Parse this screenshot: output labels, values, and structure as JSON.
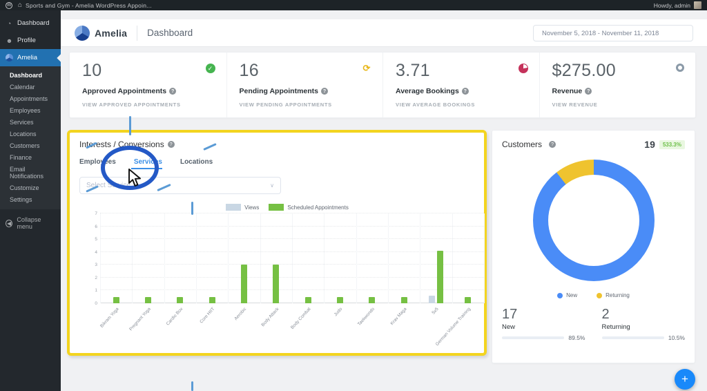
{
  "admin_bar": {
    "site_title": "Sports and Gym - Amelia WordPress Appoin...",
    "howdy_text": "Howdy, admin"
  },
  "sidebar": {
    "items": [
      {
        "label": "Dashboard"
      },
      {
        "label": "Profile"
      },
      {
        "label": "Amelia"
      }
    ],
    "submenu": [
      {
        "label": "Dashboard"
      },
      {
        "label": "Calendar"
      },
      {
        "label": "Appointments"
      },
      {
        "label": "Employees"
      },
      {
        "label": "Services"
      },
      {
        "label": "Locations"
      },
      {
        "label": "Customers"
      },
      {
        "label": "Finance"
      },
      {
        "label": "Email Notifications"
      },
      {
        "label": "Customize"
      },
      {
        "label": "Settings"
      }
    ],
    "collapse_label": "Collapse menu"
  },
  "header": {
    "brand": "Amelia",
    "page_title": "Dashboard",
    "date_range": "November 5, 2018 - November 11, 2018"
  },
  "stats": {
    "cards": [
      {
        "value": "10",
        "label": "Approved Appointments",
        "link": "VIEW APPROVED APPOINTMENTS",
        "icon": "check-circle",
        "icon_color": "#46b450"
      },
      {
        "value": "16",
        "label": "Pending Appointments",
        "link": "VIEW PENDING APPOINTMENTS",
        "icon": "refresh-circle",
        "icon_color": "#e8b71a"
      },
      {
        "value": "3.71",
        "label": "Average Bookings",
        "link": "VIEW AVERAGE BOOKINGS",
        "icon": "pie-circle",
        "icon_color": "#c5325b"
      },
      {
        "value": "$275.00",
        "label": "Revenue",
        "link": "VIEW REVENUE",
        "icon": "ring-circle",
        "icon_color": "#8b9aa8"
      }
    ]
  },
  "interests": {
    "title": "Interests / Conversions",
    "tabs": [
      {
        "label": "Employees"
      },
      {
        "label": "Services"
      },
      {
        "label": "Locations"
      }
    ],
    "active_tab": "Services",
    "select_placeholder": "Select Service"
  },
  "chart_data": [
    {
      "type": "bar",
      "title": "Interests / Conversions - Services",
      "categories": [
        "Bikram Yoga",
        "Pregnant Yoga",
        "Cardio Box",
        "Core HIIT",
        "Aerobic",
        "Body Attack",
        "Body Combat",
        "Judo",
        "Taekwondo",
        "Krav Maga",
        "5x5",
        "German Volume Training"
      ],
      "series": [
        {
          "name": "Views",
          "color": "#c9d7e4",
          "values": [
            0,
            0,
            0,
            0,
            0,
            0,
            0,
            0,
            0,
            0,
            0.6,
            0
          ]
        },
        {
          "name": "Scheduled Appointments",
          "color": "#76c043",
          "values": [
            0.5,
            0.5,
            0.5,
            0.5,
            3,
            3,
            0.5,
            0.5,
            0.5,
            0.5,
            4.1,
            0.5
          ]
        }
      ],
      "ylim": [
        0,
        7
      ],
      "yticks": [
        0,
        1,
        2,
        3,
        4,
        5,
        6,
        7
      ],
      "grid": true,
      "legend_position": "top"
    },
    {
      "type": "pie",
      "donut": true,
      "title": "Customers",
      "labels": [
        "New",
        "Returning"
      ],
      "values": [
        17,
        2
      ],
      "percents": [
        89.5,
        10.5
      ],
      "colors": [
        "#4a8cf7",
        "#efc32f"
      ]
    }
  ],
  "customers": {
    "title": "Customers",
    "total": "19",
    "badge": "533.3%",
    "legend": [
      {
        "label": "New",
        "color": "#4a8cf7"
      },
      {
        "label": "Returning",
        "color": "#efc32f"
      }
    ],
    "rows": [
      {
        "count": "17",
        "label": "New",
        "percent_label": "89.5%",
        "percent": 89.5,
        "color": "#4a8cf7"
      },
      {
        "count": "2",
        "label": "Returning",
        "percent_label": "10.5%",
        "percent": 10.5,
        "color": "#efc32f"
      }
    ]
  },
  "fab": {
    "label": "+"
  },
  "icons": {
    "help": "?",
    "check": "✓",
    "refresh": "⟳",
    "chevron_down": "∨",
    "collapse": "◀",
    "home": "⌂",
    "wp": "W",
    "gauge": "◔",
    "person": "☻"
  },
  "colors": {
    "sidebar_active": "#2271b1",
    "highlight_yellow": "#f3d41f",
    "annotation_blue": "#2459c6",
    "chart_green": "#76c043",
    "views_gray": "#c9d7e4",
    "donut_blue": "#4a8cf7",
    "donut_yellow": "#efc32f",
    "approved_green": "#46b450",
    "pending_yellow": "#e8b71a",
    "bookings_red": "#c5325b",
    "fab_blue": "#1989fa"
  }
}
